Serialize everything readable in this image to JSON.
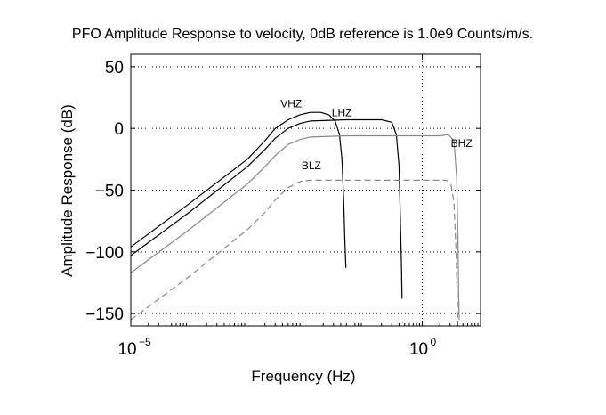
{
  "chart_data": {
    "type": "line",
    "title": "PFO Amplitude Response to velocity, 0dB reference is 1.0e9 Counts/m/s.",
    "xlabel": "Frequency (Hz)",
    "ylabel": "Amplitude Response (dB)",
    "x_scale": "log",
    "xlim": [
      1e-05,
      10
    ],
    "ylim": [
      -160,
      60
    ],
    "x_ticks": [
      {
        "value": 1e-05,
        "base": "10",
        "exponent": "−5"
      },
      {
        "value": 1,
        "base": "10",
        "exponent": "0"
      }
    ],
    "y_ticks": [
      {
        "value": 50,
        "label": "50"
      },
      {
        "value": 0,
        "label": "0"
      },
      {
        "value": -50,
        "label": "−50"
      },
      {
        "value": -100,
        "label": "−100"
      },
      {
        "value": -150,
        "label": "−150"
      }
    ],
    "grid": true,
    "series": [
      {
        "name": "VHZ",
        "color": "#000000",
        "dash": "solid",
        "label_at": [
          0.0037,
          17
        ],
        "points": [
          [
            1e-05,
            -96
          ],
          [
            0.0001,
            -61
          ],
          [
            0.001,
            -25
          ],
          [
            0.002,
            -10
          ],
          [
            0.003,
            0
          ],
          [
            0.005,
            7
          ],
          [
            0.008,
            11
          ],
          [
            0.012,
            13
          ],
          [
            0.018,
            13
          ],
          [
            0.025,
            11
          ],
          [
            0.032,
            6
          ],
          [
            0.038,
            -5
          ],
          [
            0.042,
            -25
          ],
          [
            0.045,
            -60
          ],
          [
            0.047,
            -90
          ],
          [
            0.049,
            -113
          ]
        ]
      },
      {
        "name": "LHZ",
        "color": "#000000",
        "dash": "solid",
        "label_at": [
          0.028,
          10
        ],
        "points": [
          [
            1e-05,
            -103
          ],
          [
            0.0001,
            -68
          ],
          [
            0.001,
            -31
          ],
          [
            0.002,
            -17
          ],
          [
            0.003,
            -8
          ],
          [
            0.005,
            0
          ],
          [
            0.008,
            4
          ],
          [
            0.012,
            6
          ],
          [
            0.05,
            7
          ],
          [
            0.2,
            7
          ],
          [
            0.3,
            5
          ],
          [
            0.36,
            -5
          ],
          [
            0.4,
            -30
          ],
          [
            0.42,
            -70
          ],
          [
            0.44,
            -110
          ],
          [
            0.45,
            -138
          ]
        ]
      },
      {
        "name": "BHZ",
        "color": "#888888",
        "dash": "solid",
        "label_at": [
          3.1,
          -15
        ],
        "points": [
          [
            1e-05,
            -117
          ],
          [
            0.0001,
            -82
          ],
          [
            0.001,
            -45
          ],
          [
            0.002,
            -31
          ],
          [
            0.003,
            -22
          ],
          [
            0.005,
            -13
          ],
          [
            0.008,
            -9
          ],
          [
            0.012,
            -7
          ],
          [
            0.05,
            -6
          ],
          [
            0.5,
            -6
          ],
          [
            2.0,
            -6
          ],
          [
            2.8,
            -5
          ],
          [
            3.5,
            -10
          ],
          [
            3.9,
            -40
          ],
          [
            4.1,
            -90
          ],
          [
            4.2,
            -130
          ],
          [
            4.3,
            -155
          ]
        ]
      },
      {
        "name": "BLZ",
        "color": "#888888",
        "dash": "dashed",
        "label_at": [
          0.0085,
          -33
        ],
        "points": [
          [
            1e-05,
            -155
          ],
          [
            0.0001,
            -120
          ],
          [
            0.001,
            -82
          ],
          [
            0.002,
            -68
          ],
          [
            0.003,
            -58
          ],
          [
            0.005,
            -48
          ],
          [
            0.008,
            -43
          ],
          [
            0.012,
            -42
          ],
          [
            0.1,
            -42
          ],
          [
            1.0,
            -42
          ],
          [
            2.6,
            -42
          ],
          [
            3.1,
            -45
          ],
          [
            3.5,
            -60
          ],
          [
            3.8,
            -100
          ],
          [
            4.0,
            -140
          ],
          [
            4.1,
            -160
          ]
        ]
      }
    ]
  }
}
